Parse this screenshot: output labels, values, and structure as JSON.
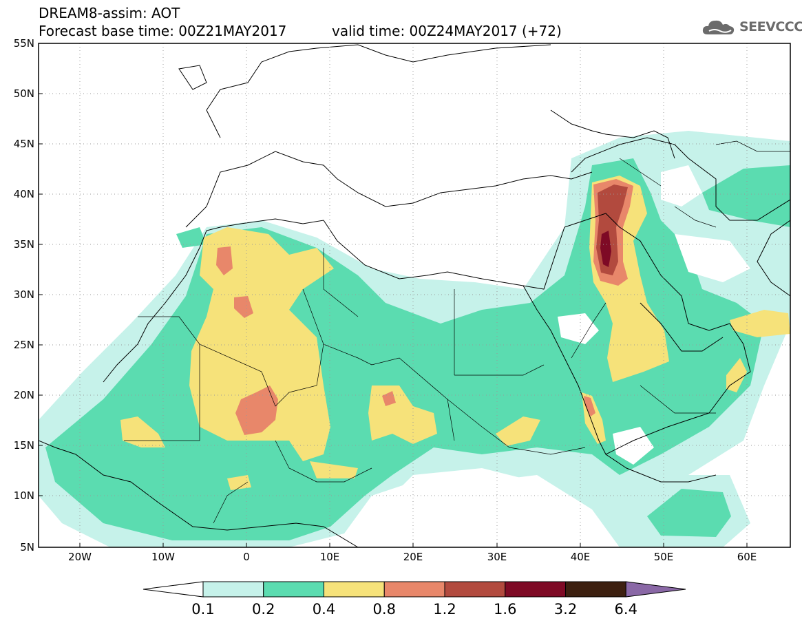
{
  "header": {
    "line1": "DREAM8-assim: AOT",
    "line2": "Forecast base time: 00Z21MAY2017",
    "line3": "valid time: 00Z24MAY2017 (+72)"
  },
  "logo": {
    "text": "SEEVCCC",
    "icon": "cloud-icon"
  },
  "axes": {
    "lat_labels": [
      "55N",
      "50N",
      "45N",
      "40N",
      "35N",
      "30N",
      "25N",
      "20N",
      "15N",
      "10N",
      "5N"
    ],
    "lon_labels": [
      "20W",
      "10W",
      "0",
      "10E",
      "20E",
      "30E",
      "40E",
      "50E",
      "60E"
    ]
  },
  "colorbar": {
    "labels": [
      "0.1",
      "0.2",
      "0.4",
      "0.8",
      "1.2",
      "1.6",
      "3.2",
      "6.4"
    ],
    "colors": [
      "#c6f2ea",
      "#5bdcb0",
      "#f6e27a",
      "#e8876a",
      "#b24a3e",
      "#7e0a25",
      "#3d2010",
      "#8a68a6"
    ],
    "under_color": "#ffffff"
  },
  "map": {
    "frame_color": "#000000",
    "land_color": "#ffffff"
  }
}
